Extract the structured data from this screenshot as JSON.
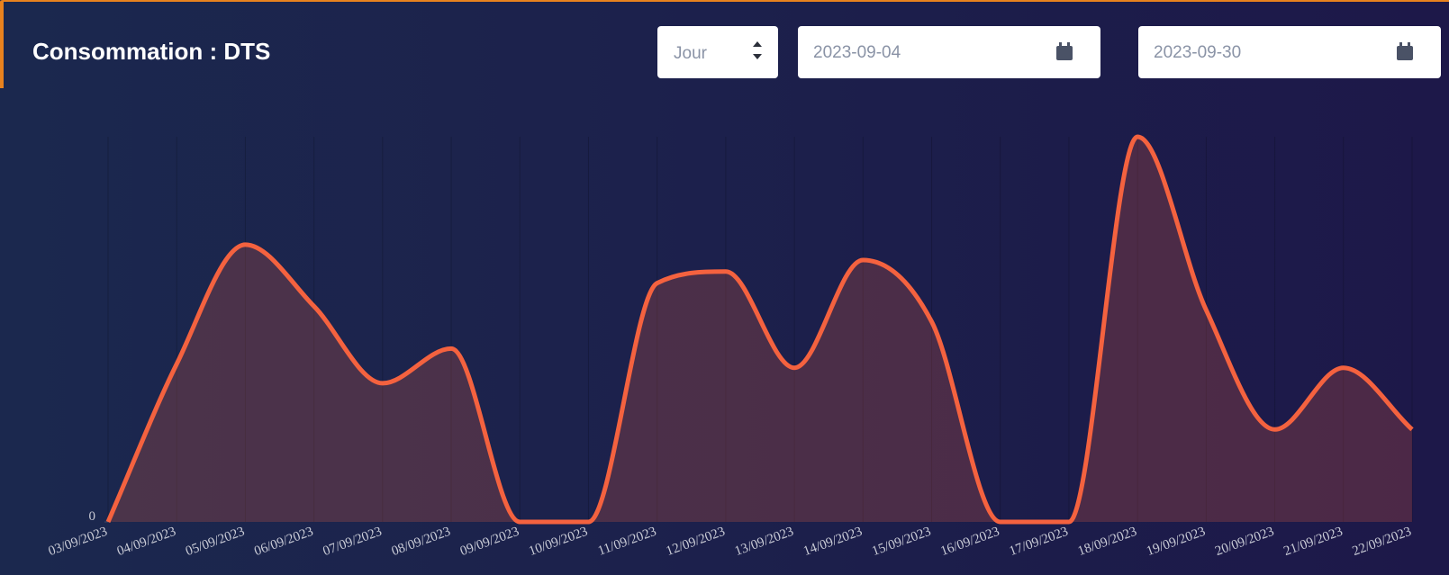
{
  "controls": {
    "period": "Jour",
    "start_date": "2023-09-04",
    "end_date": "2023-09-30"
  },
  "chart_data": {
    "type": "line",
    "title": "Consommation : DTS",
    "categories": [
      "03/09/2023",
      "04/09/2023",
      "05/09/2023",
      "06/09/2023",
      "07/09/2023",
      "08/09/2023",
      "09/09/2023",
      "10/09/2023",
      "11/09/2023",
      "12/09/2023",
      "13/09/2023",
      "14/09/2023",
      "15/09/2023",
      "16/09/2023",
      "17/09/2023",
      "18/09/2023",
      "19/09/2023",
      "20/09/2023",
      "21/09/2023",
      "22/09/2023"
    ],
    "series": [
      {
        "name": "DTS",
        "color": "#f4623f",
        "values": [
          0,
          41,
          72,
          56,
          36,
          45,
          0,
          0,
          62,
          65,
          40,
          68,
          52,
          0,
          0,
          100,
          55,
          24,
          40,
          24
        ]
      }
    ],
    "ylim": [
      0,
      100
    ],
    "yticks": [
      0
    ],
    "area": true,
    "smooth": true,
    "grid": true
  }
}
